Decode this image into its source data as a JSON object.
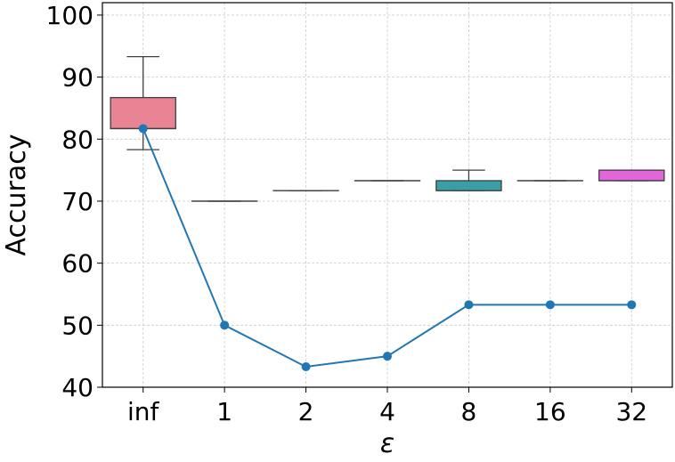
{
  "chart_data": {
    "type": "box",
    "xlabel": "ε",
    "ylabel": "Accuracy",
    "ylim": [
      40,
      102
    ],
    "yticks": [
      40,
      50,
      60,
      70,
      80,
      90,
      100
    ],
    "categories": [
      "inf",
      "1",
      "2",
      "4",
      "8",
      "16",
      "32"
    ],
    "grid": true,
    "boxes": [
      {
        "category": "inf",
        "whisker_low": 78.3,
        "q1": 81.7,
        "median": 81.7,
        "q3": 86.7,
        "whisker_high": 93.3,
        "color": "#e88494"
      },
      {
        "category": "1",
        "whisker_low": 70.0,
        "q1": 70.0,
        "median": 70.0,
        "q3": 70.0,
        "whisker_high": 70.0,
        "color": "#d98a6c"
      },
      {
        "category": "2",
        "whisker_low": 71.7,
        "q1": 71.7,
        "median": 71.7,
        "q3": 71.7,
        "whisker_high": 71.7,
        "color": "#a8a346"
      },
      {
        "category": "4",
        "whisker_low": 73.3,
        "q1": 73.3,
        "median": 73.3,
        "q3": 73.3,
        "whisker_high": 73.3,
        "color": "#5eae52"
      },
      {
        "category": "8",
        "whisker_low": 71.7,
        "q1": 71.7,
        "median": 71.7,
        "q3": 73.3,
        "whisker_high": 75.0,
        "color": "#3a9ea6"
      },
      {
        "category": "16",
        "whisker_low": 73.3,
        "q1": 73.3,
        "median": 73.3,
        "q3": 73.3,
        "whisker_high": 73.3,
        "color": "#6a9bd8"
      },
      {
        "category": "32",
        "whisker_low": 73.3,
        "q1": 73.3,
        "median": 73.3,
        "q3": 75.0,
        "whisker_high": 75.0,
        "color": "#e265dc"
      }
    ],
    "line_series": {
      "color": "#1f77b4",
      "values": [
        81.7,
        50.0,
        43.3,
        45.0,
        53.3,
        53.3,
        53.3
      ]
    }
  }
}
